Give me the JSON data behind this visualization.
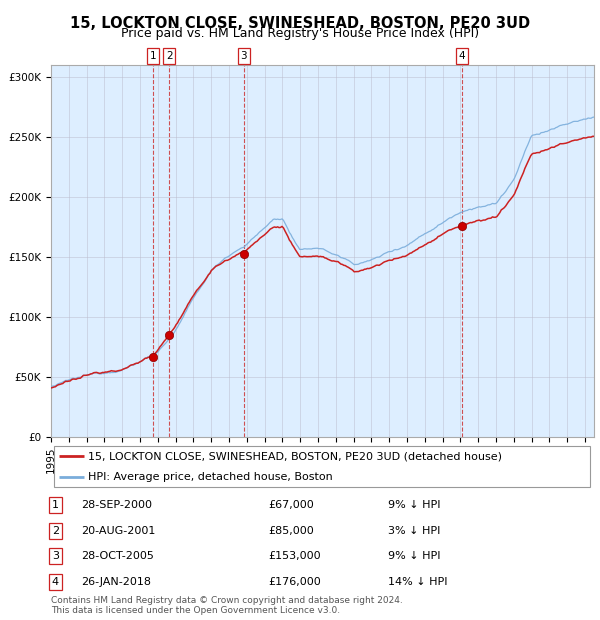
{
  "title": "15, LOCKTON CLOSE, SWINESHEAD, BOSTON, PE20 3UD",
  "subtitle": "Price paid vs. HM Land Registry's House Price Index (HPI)",
  "ylim": [
    0,
    310000
  ],
  "yticks": [
    0,
    50000,
    100000,
    150000,
    200000,
    250000,
    300000
  ],
  "ytick_labels": [
    "£0",
    "£50K",
    "£100K",
    "£150K",
    "£200K",
    "£250K",
    "£300K"
  ],
  "xstart": 1995.0,
  "xend": 2025.5,
  "hpi_color": "#7aaddb",
  "price_color": "#cc2222",
  "dot_color": "#cc0000",
  "vline_color": "#cc3333",
  "bg_color": "#ddeeff",
  "grid_color": "#bbbbcc",
  "purchases": [
    {
      "date": 2000.74,
      "price": 67000,
      "label": "1"
    },
    {
      "date": 2001.64,
      "price": 85000,
      "label": "2"
    },
    {
      "date": 2005.83,
      "price": 153000,
      "label": "3"
    },
    {
      "date": 2018.07,
      "price": 176000,
      "label": "4"
    }
  ],
  "table_rows": [
    {
      "num": "1",
      "date": "28-SEP-2000",
      "price": "£67,000",
      "hpi": "9% ↓ HPI"
    },
    {
      "num": "2",
      "date": "20-AUG-2001",
      "price": "£85,000",
      "hpi": "3% ↓ HPI"
    },
    {
      "num": "3",
      "date": "28-OCT-2005",
      "price": "£153,000",
      "hpi": "9% ↓ HPI"
    },
    {
      "num": "4",
      "date": "26-JAN-2018",
      "price": "£176,000",
      "hpi": "14% ↓ HPI"
    }
  ],
  "legend_entries": [
    "15, LOCKTON CLOSE, SWINESHEAD, BOSTON, PE20 3UD (detached house)",
    "HPI: Average price, detached house, Boston"
  ],
  "footer": "Contains HM Land Registry data © Crown copyright and database right 2024.\nThis data is licensed under the Open Government Licence v3.0.",
  "title_fontsize": 10.5,
  "subtitle_fontsize": 9,
  "tick_fontsize": 7.5,
  "legend_fontsize": 8,
  "table_fontsize": 8,
  "footer_fontsize": 6.5
}
